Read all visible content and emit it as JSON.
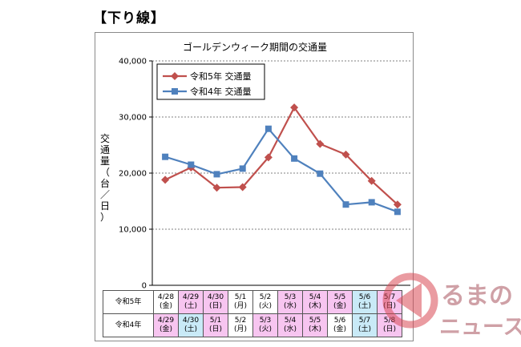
{
  "heading": "【下り線】",
  "chart_data": {
    "type": "line",
    "title": "ゴールデンウィーク期間の交通量",
    "ylabel": "交通量（台／日）",
    "ylim": [
      0,
      40000
    ],
    "yticks": [
      0,
      10000,
      20000,
      30000,
      40000
    ],
    "ytick_labels": [
      "0",
      "10,000",
      "20,000",
      "30,000",
      "40,000"
    ],
    "grid": true,
    "legend_position": "top-left",
    "series": [
      {
        "name": "令和5年 交通量",
        "color": "#c0504d",
        "marker": "diamond",
        "values": [
          18800,
          21000,
          17400,
          17500,
          22800,
          31700,
          25200,
          23300,
          18600,
          14400
        ]
      },
      {
        "name": "令和4年 交通量",
        "color": "#4f81bd",
        "marker": "square",
        "values": [
          22900,
          21500,
          19800,
          20800,
          27900,
          22600,
          19900,
          14400,
          14800,
          13100
        ]
      }
    ]
  },
  "table": {
    "rows": [
      {
        "label": "令和5年",
        "cells": [
          {
            "date": "4/28",
            "day": "(金)",
            "kind": "normal"
          },
          {
            "date": "4/29",
            "day": "(土)",
            "kind": "holiday"
          },
          {
            "date": "4/30",
            "day": "(日)",
            "kind": "holiday"
          },
          {
            "date": "5/1",
            "day": "(月)",
            "kind": "normal"
          },
          {
            "date": "5/2",
            "day": "(火)",
            "kind": "normal"
          },
          {
            "date": "5/3",
            "day": "(水)",
            "kind": "holiday"
          },
          {
            "date": "5/4",
            "day": "(木)",
            "kind": "holiday"
          },
          {
            "date": "5/5",
            "day": "(金)",
            "kind": "holiday"
          },
          {
            "date": "5/6",
            "day": "(土)",
            "kind": "saturday"
          },
          {
            "date": "5/7",
            "day": "(日)",
            "kind": "holiday"
          }
        ]
      },
      {
        "label": "令和4年",
        "cells": [
          {
            "date": "4/29",
            "day": "(金)",
            "kind": "holiday"
          },
          {
            "date": "4/30",
            "day": "(土)",
            "kind": "saturday"
          },
          {
            "date": "5/1",
            "day": "(日)",
            "kind": "holiday"
          },
          {
            "date": "5/2",
            "day": "(月)",
            "kind": "normal"
          },
          {
            "date": "5/3",
            "day": "(火)",
            "kind": "holiday"
          },
          {
            "date": "5/4",
            "day": "(水)",
            "kind": "holiday"
          },
          {
            "date": "5/5",
            "day": "(木)",
            "kind": "holiday"
          },
          {
            "date": "5/6",
            "day": "(金)",
            "kind": "normal"
          },
          {
            "date": "5/7",
            "day": "(土)",
            "kind": "saturday"
          },
          {
            "date": "5/8",
            "day": "(日)",
            "kind": "holiday"
          }
        ]
      }
    ]
  },
  "watermark": {
    "line1": "るまの",
    "line2": "ニュース"
  },
  "colors": {
    "holiday": "#f7c5f0",
    "saturday": "#c9eaf7",
    "grid": "#808080",
    "watermark": "#d9aeb2"
  }
}
